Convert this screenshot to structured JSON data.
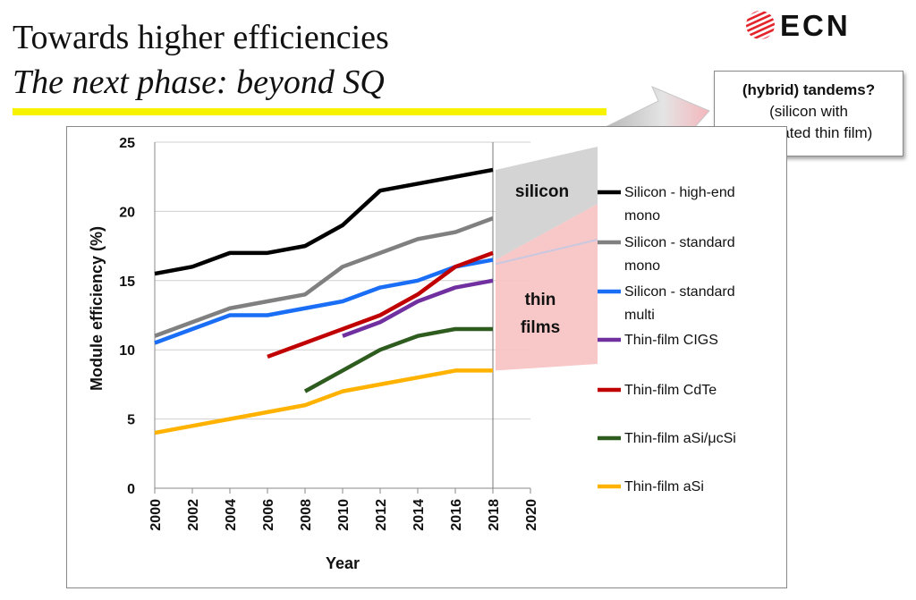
{
  "header": {
    "title": "Towards higher efficiencies",
    "subtitle": "The next phase: beyond SQ",
    "logo_text": "ECN"
  },
  "callout": {
    "line1": "(hybrid) tandems?",
    "line2": "(silicon with",
    "line3": "dedicated thin film)"
  },
  "colors": {
    "title_underline": "#f7f200",
    "logo_red": "#e3242b",
    "silicon_region": "#d4d4d4",
    "thin_film_region": "#f8c4c4"
  },
  "chart_data": {
    "type": "line",
    "xlabel": "Year",
    "ylabel": "Module efficiency (%)",
    "xlim": [
      2000,
      2020
    ],
    "ylim": [
      0,
      25
    ],
    "x_ticks": [
      "2000",
      "2002",
      "2004",
      "2006",
      "2008",
      "2010",
      "2012",
      "2014",
      "2016",
      "2018",
      "2020"
    ],
    "y_ticks": [
      "0",
      "5",
      "10",
      "15",
      "20",
      "25"
    ],
    "grid": "horizontal",
    "legend_position": "right",
    "series": [
      {
        "name": "Silicon - high-end mono",
        "color": "#000000",
        "x": [
          2000,
          2002,
          2004,
          2006,
          2008,
          2010,
          2012,
          2014,
          2016,
          2018
        ],
        "y": [
          15.5,
          16,
          17,
          17,
          17.5,
          19,
          21.5,
          22,
          22.5,
          23
        ]
      },
      {
        "name": "Silicon - standard mono",
        "color": "#808080",
        "x": [
          2000,
          2002,
          2004,
          2006,
          2008,
          2010,
          2012,
          2014,
          2016,
          2018
        ],
        "y": [
          11,
          12,
          13,
          13.5,
          14,
          16,
          17,
          18,
          18.5,
          19.5
        ]
      },
      {
        "name": "Silicon - standard multi",
        "color": "#1a6ef5",
        "x": [
          2000,
          2002,
          2004,
          2006,
          2008,
          2010,
          2012,
          2014,
          2016,
          2018
        ],
        "y": [
          10.5,
          11.5,
          12.5,
          12.5,
          13,
          13.5,
          14.5,
          15,
          16,
          16.5
        ]
      },
      {
        "name": "Thin-film CIGS",
        "color": "#7030a0",
        "x": [
          2010,
          2012,
          2014,
          2016,
          2018
        ],
        "y": [
          11,
          12,
          13.5,
          14.5,
          15
        ]
      },
      {
        "name": "Thin-film CdTe",
        "color": "#c00000",
        "x": [
          2006,
          2008,
          2010,
          2012,
          2014,
          2016,
          2018
        ],
        "y": [
          9.5,
          10.5,
          11.5,
          12.5,
          14,
          16,
          17
        ]
      },
      {
        "name": "Thin-film aSi/μcSi",
        "color": "#2e5c1e",
        "x": [
          2008,
          2010,
          2012,
          2014,
          2016,
          2018
        ],
        "y": [
          7,
          8.5,
          10,
          11,
          11.5,
          11.5
        ]
      },
      {
        "name": "Thin-film aSi",
        "color": "#ffb300",
        "x": [
          2000,
          2002,
          2004,
          2006,
          2008,
          2010,
          2012,
          2014,
          2016,
          2018
        ],
        "y": [
          4,
          4.5,
          5,
          5.5,
          6,
          7,
          7.5,
          8,
          8.5,
          8.5
        ]
      }
    ],
    "legend_lines": [
      [
        "Silicon - high-end",
        "mono"
      ],
      [
        "Silicon - standard",
        "mono"
      ],
      [
        "Silicon - standard",
        "multi"
      ],
      [
        "Thin-film CIGS"
      ],
      [
        "Thin-film CdTe"
      ],
      [
        "Thin-film aSi/μcSi"
      ],
      [
        "Thin-film aSi"
      ]
    ],
    "annotations": {
      "silicon_region_label": "silicon",
      "thin_film_region_label_1": "thin",
      "thin_film_region_label_2": "films"
    }
  }
}
